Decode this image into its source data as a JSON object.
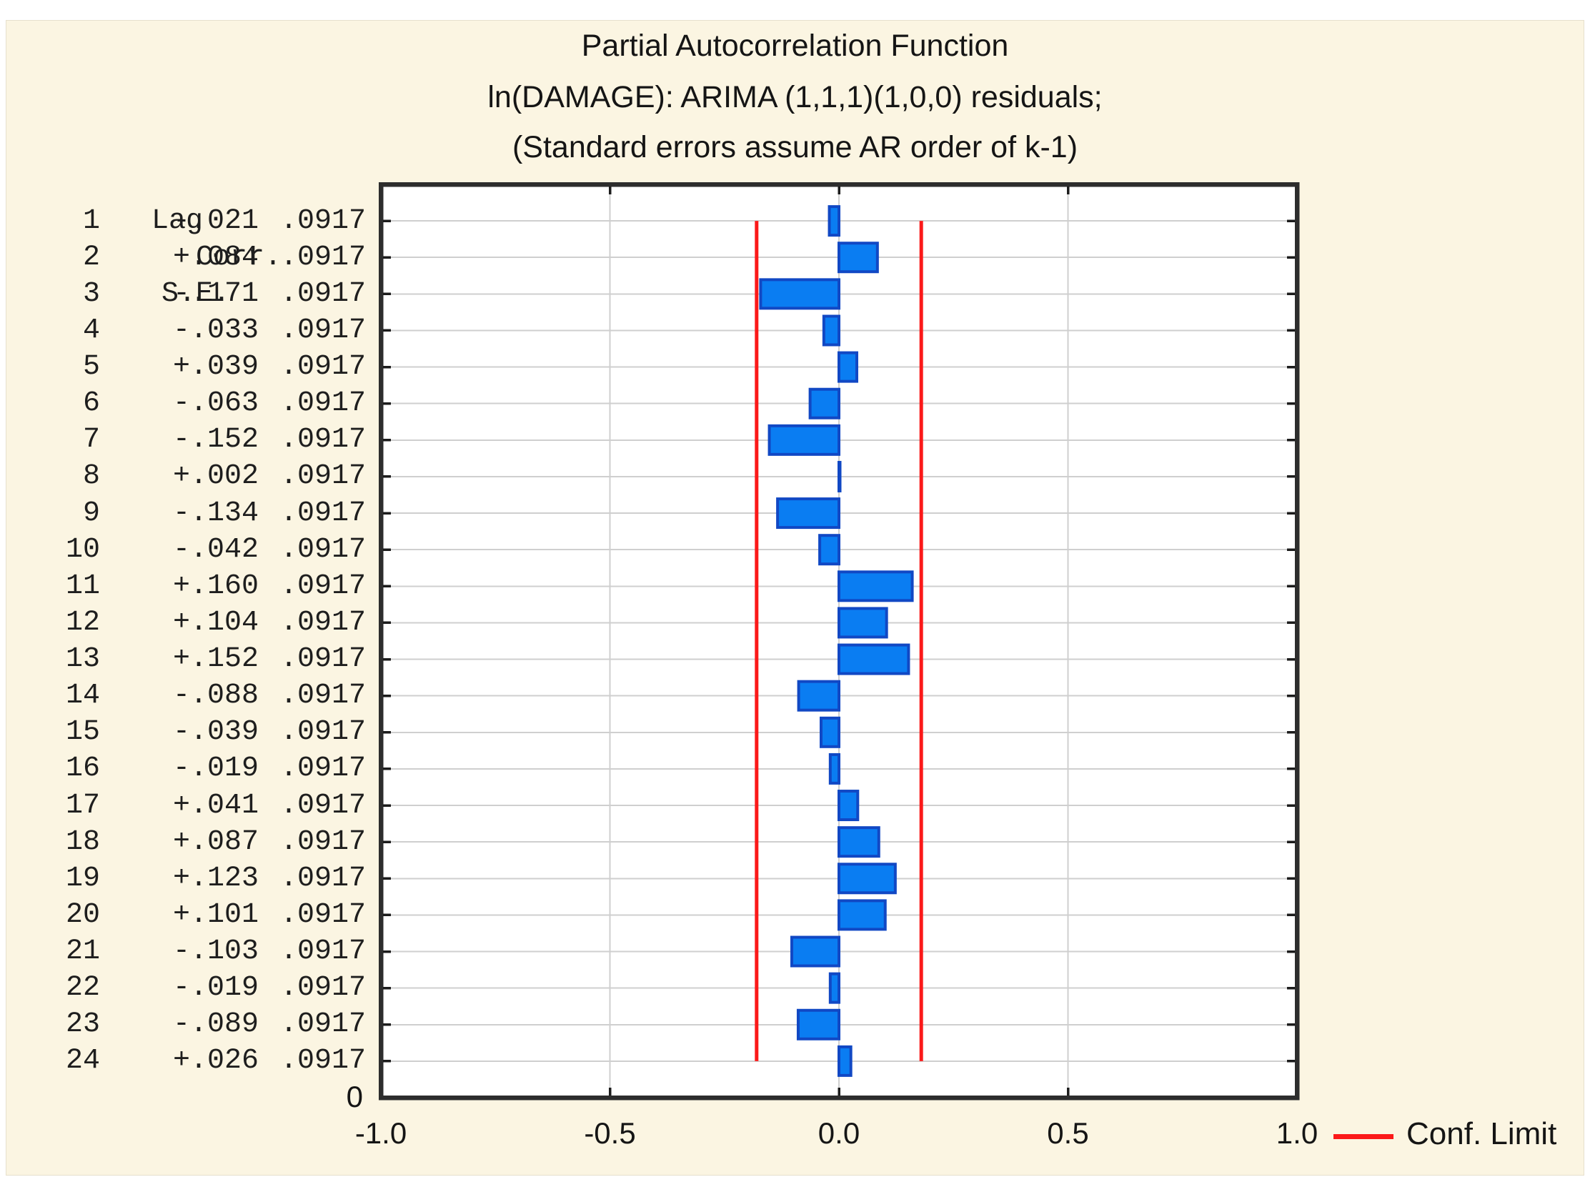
{
  "title": {
    "line1": "Partial Autocorrelation Function",
    "line2": "ln(DAMAGE): ARIMA (1,1,1)(1,0,0) residuals;",
    "line3": "(Standard errors assume AR order of k-1)"
  },
  "table": {
    "headers": {
      "lag": "Lag",
      "corr": "Corr.",
      "se": "S.E."
    },
    "rows": [
      {
        "lag": "1",
        "corr": "-.021",
        "se": ".0917"
      },
      {
        "lag": "2",
        "corr": "+.084",
        "se": ".0917"
      },
      {
        "lag": "3",
        "corr": "-.171",
        "se": ".0917"
      },
      {
        "lag": "4",
        "corr": "-.033",
        "se": ".0917"
      },
      {
        "lag": "5",
        "corr": "+.039",
        "se": ".0917"
      },
      {
        "lag": "6",
        "corr": "-.063",
        "se": ".0917"
      },
      {
        "lag": "7",
        "corr": "-.152",
        "se": ".0917"
      },
      {
        "lag": "8",
        "corr": "+.002",
        "se": ".0917"
      },
      {
        "lag": "9",
        "corr": "-.134",
        "se": ".0917"
      },
      {
        "lag": "10",
        "corr": "-.042",
        "se": ".0917"
      },
      {
        "lag": "11",
        "corr": "+.160",
        "se": ".0917"
      },
      {
        "lag": "12",
        "corr": "+.104",
        "se": ".0917"
      },
      {
        "lag": "13",
        "corr": "+.152",
        "se": ".0917"
      },
      {
        "lag": "14",
        "corr": "-.088",
        "se": ".0917"
      },
      {
        "lag": "15",
        "corr": "-.039",
        "se": ".0917"
      },
      {
        "lag": "16",
        "corr": "-.019",
        "se": ".0917"
      },
      {
        "lag": "17",
        "corr": "+.041",
        "se": ".0917"
      },
      {
        "lag": "18",
        "corr": "+.087",
        "se": ".0917"
      },
      {
        "lag": "19",
        "corr": "+.123",
        "se": ".0917"
      },
      {
        "lag": "20",
        "corr": "+.101",
        "se": ".0917"
      },
      {
        "lag": "21",
        "corr": "-.103",
        "se": ".0917"
      },
      {
        "lag": "22",
        "corr": "-.019",
        "se": ".0917"
      },
      {
        "lag": "23",
        "corr": "-.089",
        "se": ".0917"
      },
      {
        "lag": "24",
        "corr": "+.026",
        "se": ".0917"
      }
    ]
  },
  "chart_data": {
    "type": "bar",
    "orientation": "horizontal",
    "title": "Partial Autocorrelation Function",
    "subtitle": "ln(DAMAGE): ARIMA (1,1,1)(1,0,0) residuals;",
    "note": "(Standard errors assume AR order of k-1)",
    "lags": [
      1,
      2,
      3,
      4,
      5,
      6,
      7,
      8,
      9,
      10,
      11,
      12,
      13,
      14,
      15,
      16,
      17,
      18,
      19,
      20,
      21,
      22,
      23,
      24
    ],
    "corr": [
      -0.021,
      0.084,
      -0.171,
      -0.033,
      0.039,
      -0.063,
      -0.152,
      0.002,
      -0.134,
      -0.042,
      0.16,
      0.104,
      0.152,
      -0.088,
      -0.039,
      -0.019,
      0.041,
      0.087,
      0.123,
      0.101,
      -0.103,
      -0.019,
      -0.089,
      0.026
    ],
    "standard_error": 0.0917,
    "conf_limit": 0.1797,
    "xlim": [
      -1.0,
      1.0
    ],
    "x_ticks": [
      {
        "value": -1.0,
        "label": "-1.0"
      },
      {
        "value": -0.5,
        "label": "-0.5"
      },
      {
        "value": 0.0,
        "label": "0.0"
      },
      {
        "value": 0.5,
        "label": "0.5"
      },
      {
        "value": 1.0,
        "label": "1.0"
      }
    ],
    "x_gridlines": [
      -0.5,
      0.0,
      0.5
    ],
    "y_axis_bottom_label": "0",
    "y_rows": 25,
    "grid": true,
    "legend_position": "bottom-right"
  },
  "legend": {
    "label": "Conf. Limit",
    "color": "#fb1919"
  },
  "colors": {
    "panel_bg": "#fbf5e2",
    "plot_bg": "#ffffff",
    "bar_fill": "#0a7df2",
    "bar_border": "#1148c4",
    "conf_limit_line": "#fb1919",
    "gridline": "#cfcfcf",
    "frame": "#2d2d2d",
    "tick": "#1c1c1c",
    "text": "#1b1b1b"
  }
}
